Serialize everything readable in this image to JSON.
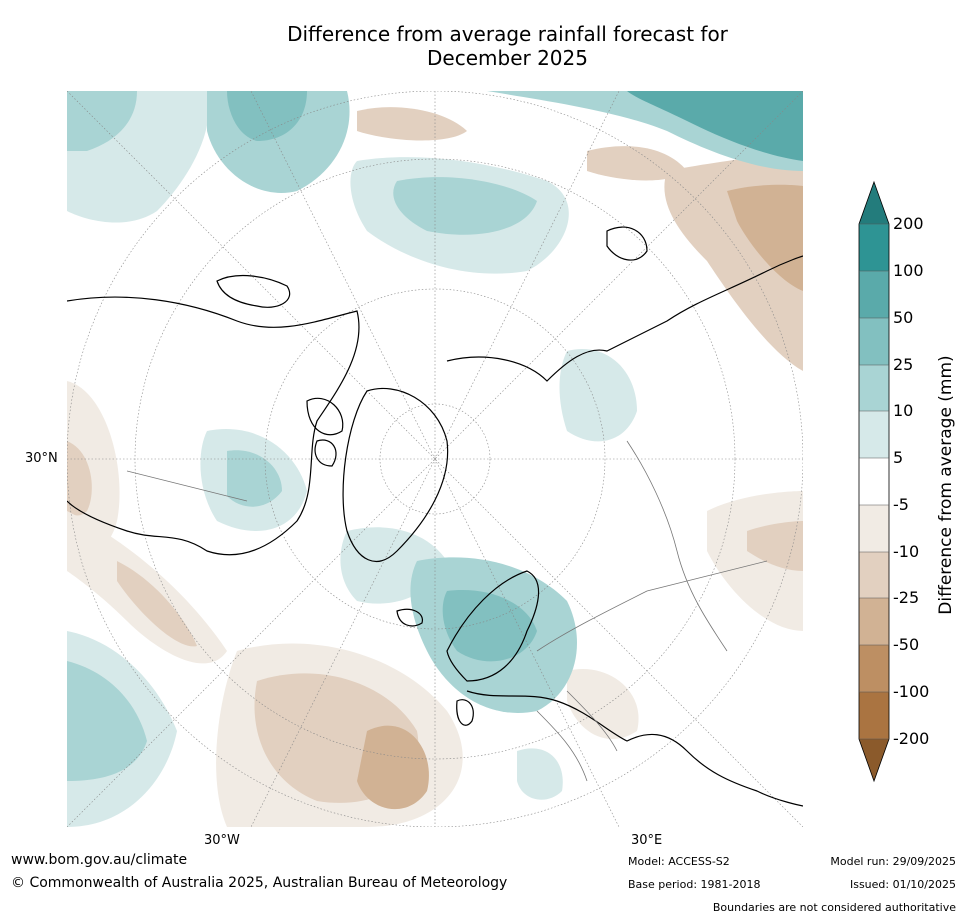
{
  "title": {
    "line1": "Difference from average rainfall forecast for",
    "line2": "December 2025"
  },
  "map": {
    "projection": "north-polar-stereographic",
    "lat_labels": [
      "30°N"
    ],
    "lon_labels": [
      "30°W",
      "30°E"
    ]
  },
  "colorbar": {
    "label": "Difference from average (mm)",
    "ticks": [
      "200",
      "100",
      "50",
      "25",
      "10",
      "5",
      "-5",
      "-10",
      "-25",
      "-50",
      "-100",
      "-200"
    ],
    "colors": {
      "extend_high": "#237c7c",
      "100_200": "#2e9494",
      "50_100": "#5aaaaa",
      "25_50": "#82c0c0",
      "10_25": "#a9d4d4",
      "5_10": "#d6e9e9",
      "neutral": "#ffffff",
      "m5_m10": "#f1ebe4",
      "m10_m25": "#e2d0c0",
      "m25_m50": "#d1b294",
      "m50_m100": "#bd8f63",
      "m100_m200": "#aa7441",
      "extend_low": "#8b5a2b"
    }
  },
  "footer": {
    "website": "www.bom.gov.au/climate",
    "copyright": "© Commonwealth of Australia 2025, Australian Bureau of Meteorology",
    "model": "Model: ACCESS-S2",
    "base_period": "Base period: 1981-2018",
    "model_run": "Model run: 29/09/2025",
    "issued": "Issued: 01/10/2025",
    "disclaimer": "Boundaries are not considered authoritative"
  }
}
